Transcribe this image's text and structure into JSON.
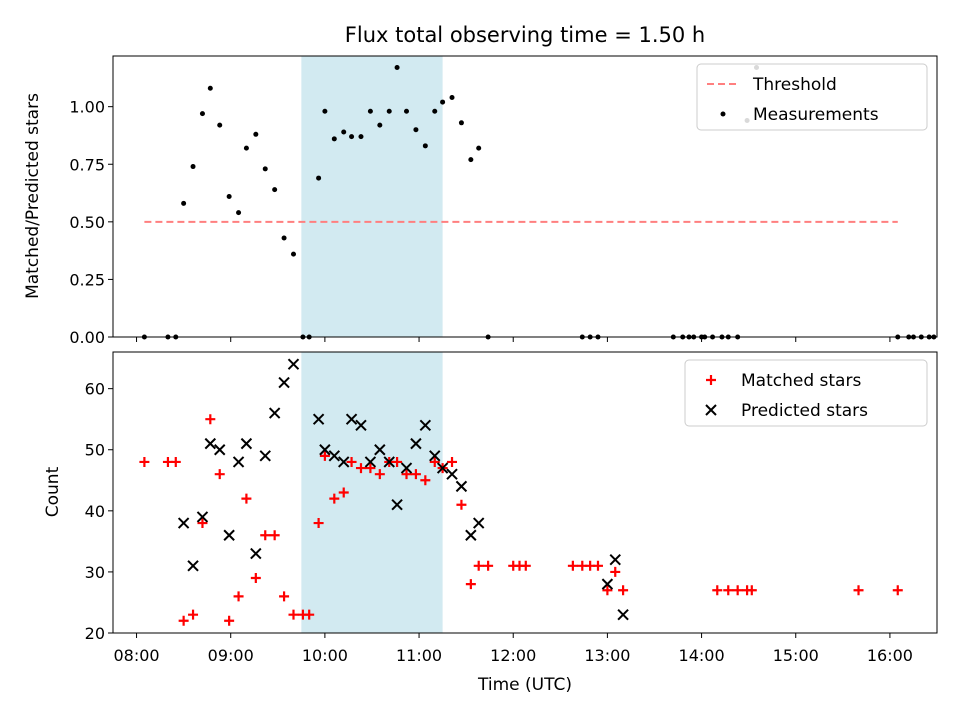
{
  "title": "Flux total observing time = 1.50 h",
  "colors": {
    "threshold": "#ff7f7f",
    "measurement": "#000000",
    "matched": "#ff0000",
    "predicted": "#000000",
    "span": "#add8e6"
  },
  "chart_data": [
    {
      "type": "scatter",
      "panel": "top",
      "ylabel": "Matched/Predicted stars",
      "xlim": [
        "07:45",
        "16:30"
      ],
      "ylim": [
        0,
        1.22
      ],
      "yticks": [
        "0.00",
        "0.25",
        "0.50",
        "0.75",
        "1.00"
      ],
      "xticks": [
        "08:00",
        "09:00",
        "10:00",
        "11:00",
        "12:00",
        "13:00",
        "14:00",
        "15:00",
        "16:00"
      ],
      "shaded_span": [
        "09:45",
        "11:15"
      ],
      "legend": {
        "position": "top-right",
        "entries": [
          "Threshold",
          "Measurements"
        ]
      },
      "threshold": {
        "name": "Threshold",
        "y": 0.5,
        "x": [
          "08:05",
          "16:05"
        ]
      },
      "series": [
        {
          "name": "Measurements",
          "points": [
            [
              "08:05",
              0
            ],
            [
              "08:20",
              0
            ],
            [
              "08:25",
              0
            ],
            [
              "08:30",
              0.58
            ],
            [
              "08:36",
              0.74
            ],
            [
              "08:42",
              0.97
            ],
            [
              "08:47",
              1.08
            ],
            [
              "08:53",
              0.92
            ],
            [
              "08:59",
              0.61
            ],
            [
              "09:05",
              0.54
            ],
            [
              "09:10",
              0.82
            ],
            [
              "09:16",
              0.88
            ],
            [
              "09:22",
              0.73
            ],
            [
              "09:28",
              0.64
            ],
            [
              "09:34",
              0.43
            ],
            [
              "09:40",
              0.36
            ],
            [
              "09:46",
              0
            ],
            [
              "09:50",
              0
            ],
            [
              "09:56",
              0.69
            ],
            [
              "10:00",
              0.98
            ],
            [
              "10:06",
              0.86
            ],
            [
              "10:12",
              0.89
            ],
            [
              "10:17",
              0.87
            ],
            [
              "10:23",
              0.87
            ],
            [
              "10:29",
              0.98
            ],
            [
              "10:35",
              0.92
            ],
            [
              "10:41",
              0.98
            ],
            [
              "10:46",
              1.17
            ],
            [
              "10:52",
              0.98
            ],
            [
              "10:58",
              0.9
            ],
            [
              "11:04",
              0.83
            ],
            [
              "11:10",
              0.98
            ],
            [
              "11:15",
              1.02
            ],
            [
              "11:21",
              1.04
            ],
            [
              "11:27",
              0.93
            ],
            [
              "11:33",
              0.77
            ],
            [
              "11:38",
              0.82
            ],
            [
              "11:44",
              0
            ],
            [
              "12:44",
              0
            ],
            [
              "12:49",
              0
            ],
            [
              "12:54",
              0
            ],
            [
              "13:42",
              0
            ],
            [
              "13:48",
              0
            ],
            [
              "13:52",
              0
            ],
            [
              "13:55",
              0
            ],
            [
              "14:00",
              0
            ],
            [
              "14:02",
              0
            ],
            [
              "14:07",
              0
            ],
            [
              "14:13",
              0
            ],
            [
              "14:17",
              0
            ],
            [
              "14:23",
              0
            ],
            [
              "14:29",
              0.94
            ],
            [
              "14:35",
              1.17
            ],
            [
              "16:05",
              0
            ],
            [
              "16:12",
              0
            ],
            [
              "16:15",
              0
            ],
            [
              "16:20",
              0
            ],
            [
              "16:25",
              0
            ],
            [
              "16:28",
              0
            ]
          ]
        }
      ]
    },
    {
      "type": "scatter",
      "panel": "bottom",
      "xlabel": "Time (UTC)",
      "ylabel": "Count",
      "xlim": [
        "07:45",
        "16:30"
      ],
      "ylim": [
        20,
        66
      ],
      "yticks": [
        "20",
        "30",
        "40",
        "50",
        "60"
      ],
      "xticks": [
        "08:00",
        "09:00",
        "10:00",
        "11:00",
        "12:00",
        "13:00",
        "14:00",
        "15:00",
        "16:00"
      ],
      "shaded_span": [
        "09:45",
        "11:15"
      ],
      "legend": {
        "position": "top-right",
        "entries": [
          "Matched stars",
          "Predicted stars"
        ]
      },
      "series": [
        {
          "name": "Matched stars",
          "marker": "plus",
          "points": [
            [
              "08:05",
              48
            ],
            [
              "08:20",
              48
            ],
            [
              "08:25",
              48
            ],
            [
              "08:30",
              22
            ],
            [
              "08:36",
              23
            ],
            [
              "08:42",
              38
            ],
            [
              "08:47",
              55
            ],
            [
              "08:53",
              46
            ],
            [
              "08:59",
              22
            ],
            [
              "09:05",
              26
            ],
            [
              "09:10",
              42
            ],
            [
              "09:16",
              29
            ],
            [
              "09:22",
              36
            ],
            [
              "09:28",
              36
            ],
            [
              "09:34",
              26
            ],
            [
              "09:40",
              23
            ],
            [
              "09:46",
              23
            ],
            [
              "09:50",
              23
            ],
            [
              "09:56",
              38
            ],
            [
              "10:00",
              49
            ],
            [
              "10:06",
              42
            ],
            [
              "10:12",
              43
            ],
            [
              "10:17",
              48
            ],
            [
              "10:23",
              47
            ],
            [
              "10:29",
              47
            ],
            [
              "10:35",
              46
            ],
            [
              "10:41",
              48
            ],
            [
              "10:46",
              48
            ],
            [
              "10:52",
              46
            ],
            [
              "10:58",
              46
            ],
            [
              "11:04",
              45
            ],
            [
              "11:10",
              48
            ],
            [
              "11:15",
              47
            ],
            [
              "11:21",
              48
            ],
            [
              "11:27",
              41
            ],
            [
              "11:33",
              28
            ],
            [
              "11:38",
              31
            ],
            [
              "11:44",
              31
            ],
            [
              "12:00",
              31
            ],
            [
              "12:04",
              31
            ],
            [
              "12:08",
              31
            ],
            [
              "12:38",
              31
            ],
            [
              "12:44",
              31
            ],
            [
              "12:49",
              31
            ],
            [
              "12:54",
              31
            ],
            [
              "13:00",
              27
            ],
            [
              "13:05",
              30
            ],
            [
              "13:10",
              27
            ],
            [
              "14:10",
              27
            ],
            [
              "14:17",
              27
            ],
            [
              "14:23",
              27
            ],
            [
              "14:29",
              27
            ],
            [
              "14:32",
              27
            ],
            [
              "15:40",
              27
            ],
            [
              "16:05",
              27
            ]
          ]
        },
        {
          "name": "Predicted stars",
          "marker": "x",
          "points": [
            [
              "08:30",
              38
            ],
            [
              "08:36",
              31
            ],
            [
              "08:42",
              39
            ],
            [
              "08:47",
              51
            ],
            [
              "08:53",
              50
            ],
            [
              "08:59",
              36
            ],
            [
              "09:05",
              48
            ],
            [
              "09:10",
              51
            ],
            [
              "09:16",
              33
            ],
            [
              "09:22",
              49
            ],
            [
              "09:28",
              56
            ],
            [
              "09:34",
              61
            ],
            [
              "09:40",
              64
            ],
            [
              "09:56",
              55
            ],
            [
              "10:00",
              50
            ],
            [
              "10:06",
              49
            ],
            [
              "10:12",
              48
            ],
            [
              "10:17",
              55
            ],
            [
              "10:23",
              54
            ],
            [
              "10:29",
              48
            ],
            [
              "10:35",
              50
            ],
            [
              "10:41",
              48
            ],
            [
              "10:46",
              41
            ],
            [
              "10:52",
              47
            ],
            [
              "10:58",
              51
            ],
            [
              "11:04",
              54
            ],
            [
              "11:10",
              49
            ],
            [
              "11:15",
              47
            ],
            [
              "11:21",
              46
            ],
            [
              "11:27",
              44
            ],
            [
              "11:33",
              36
            ],
            [
              "11:38",
              38
            ],
            [
              "13:00",
              28
            ],
            [
              "13:05",
              32
            ],
            [
              "13:10",
              23
            ]
          ]
        }
      ]
    }
  ]
}
